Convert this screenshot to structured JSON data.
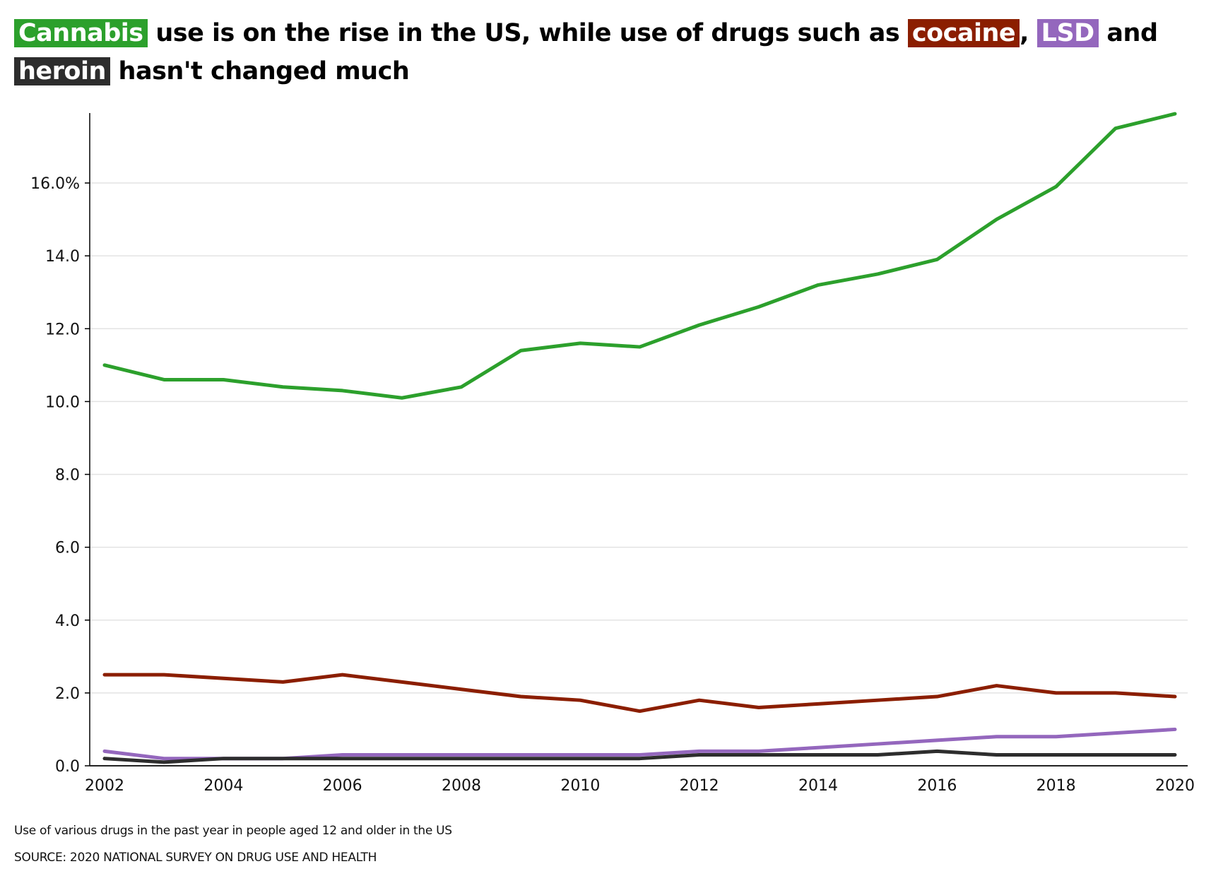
{
  "title": {
    "parts": [
      {
        "text": "Cannabis",
        "highlight": "#2ca02c"
      },
      {
        "text": " use is on the rise in the US, while use of drugs such as "
      },
      {
        "text": "cocaine",
        "highlight": "#8b1e00"
      },
      {
        "text": ", "
      },
      {
        "text": "LSD",
        "highlight": "#9467bd"
      },
      {
        "text": " and "
      },
      {
        "text": "heroin",
        "highlight": "#2d2d2d"
      },
      {
        "text": " hasn't changed much"
      }
    ]
  },
  "footer": {
    "subtitle": "Use of various drugs in the past year in people aged 12 and older in the US",
    "source": "SOURCE: 2020 NATIONAL SURVEY ON DRUG USE AND HEALTH"
  },
  "chart_data": {
    "type": "line",
    "x": [
      2002,
      2003,
      2004,
      2005,
      2006,
      2007,
      2008,
      2009,
      2010,
      2011,
      2012,
      2013,
      2014,
      2015,
      2016,
      2017,
      2018,
      2019,
      2020
    ],
    "xticks": [
      "2002",
      "2004",
      "2006",
      "2008",
      "2010",
      "2012",
      "2014",
      "2016",
      "2018",
      "2020"
    ],
    "yticks": [
      "0.0",
      "2.0",
      "4.0",
      "6.0",
      "8.0",
      "10.0",
      "12.0",
      "14.0",
      "16.0%"
    ],
    "ylim": [
      0,
      17.9
    ],
    "xlim": [
      2002,
      2020
    ],
    "grid": "horizontal",
    "series": [
      {
        "key": "cannabis",
        "color": "#2ca02c",
        "values": [
          11.0,
          10.6,
          10.6,
          10.4,
          10.3,
          10.1,
          10.4,
          11.4,
          11.6,
          11.5,
          12.1,
          12.6,
          13.2,
          13.5,
          13.9,
          15.0,
          15.9,
          17.5,
          17.9
        ]
      },
      {
        "key": "cocaine",
        "color": "#8b1e00",
        "values": [
          2.5,
          2.5,
          2.4,
          2.3,
          2.5,
          2.3,
          2.1,
          1.9,
          1.8,
          1.5,
          1.8,
          1.6,
          1.7,
          1.8,
          1.9,
          2.2,
          2.0,
          2.0,
          1.9
        ]
      },
      {
        "key": "lsd",
        "color": "#9467bd",
        "values": [
          0.4,
          0.2,
          0.2,
          0.2,
          0.3,
          0.3,
          0.3,
          0.3,
          0.3,
          0.3,
          0.4,
          0.4,
          0.5,
          0.6,
          0.7,
          0.8,
          0.8,
          0.9,
          1.0
        ]
      },
      {
        "key": "heroin",
        "color": "#2d2d2d",
        "values": [
          0.2,
          0.1,
          0.2,
          0.2,
          0.2,
          0.2,
          0.2,
          0.2,
          0.2,
          0.2,
          0.3,
          0.3,
          0.3,
          0.3,
          0.4,
          0.3,
          0.3,
          0.3,
          0.3
        ]
      }
    ]
  }
}
